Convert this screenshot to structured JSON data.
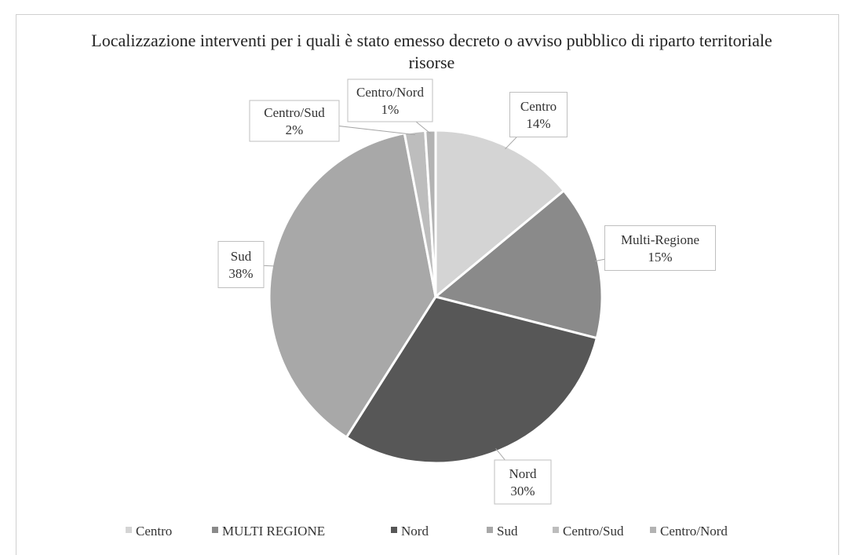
{
  "chart_data": {
    "type": "pie",
    "title": "Localizzazione interventi per i quali è stato emesso decreto o avviso pubblico di riparto territoriale risorse",
    "categories": [
      "Centro",
      "MULTI REGIONE",
      "Nord",
      "Sud",
      "Centro/Sud",
      "Centro/Nord"
    ],
    "label_names": [
      "Centro",
      "Multi-Regione",
      "Nord",
      "Sud",
      "Centro/Sud",
      "Centro/Nord"
    ],
    "values": [
      14,
      15,
      30,
      38,
      2,
      1
    ],
    "value_labels": [
      "14%",
      "15%",
      "30%",
      "38%",
      "2%",
      "1%"
    ],
    "colors": [
      "#d4d4d4",
      "#8a8a8a",
      "#575757",
      "#a8a8a8",
      "#bdbdbd",
      "#b3b3b3"
    ],
    "legend": "bottom"
  }
}
